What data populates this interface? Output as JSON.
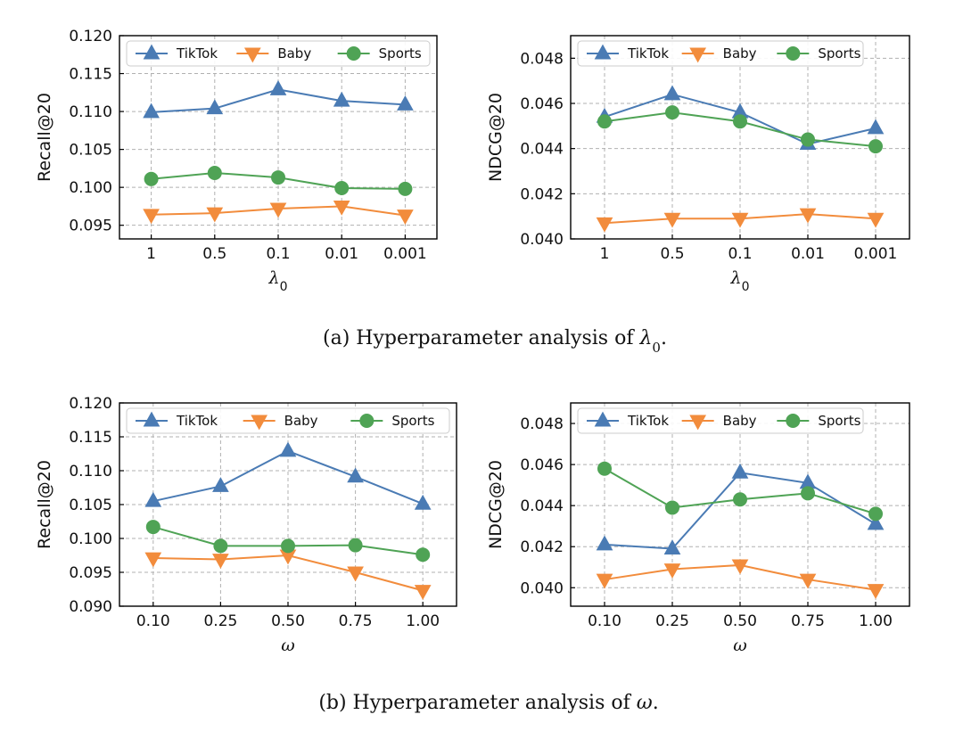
{
  "colors": {
    "TikTok": "#4a7bb4",
    "Baby": "#f28c3c",
    "Sports": "#4fa355",
    "grid": "#b0b0b0",
    "axis": "#000000"
  },
  "markers": {
    "TikTok": "triangle-up",
    "Baby": "triangle-down",
    "Sports": "circle"
  },
  "captions": {
    "a": {
      "prefix": "(a)  Hyperparameter analysis of ",
      "symbol": "λ",
      "subscript": "0",
      "suffix": "."
    },
    "b": {
      "prefix": "(b)  Hyperparameter analysis of ",
      "symbol": "ω",
      "subscript": "",
      "suffix": "."
    }
  },
  "chart_data": [
    {
      "id": "a-recall",
      "type": "line",
      "categories": [
        "1",
        "0.5",
        "0.1",
        "0.01",
        "0.001"
      ],
      "xlabel": "λ",
      "xlabel_sub": "0",
      "ylabel": "Recall@20",
      "ylim": [
        0.0932,
        0.12
      ],
      "yticks": [
        "0.095",
        "0.100",
        "0.105",
        "0.110",
        "0.115",
        "0.120"
      ],
      "grid": true,
      "legend": "top",
      "series": [
        {
          "name": "TikTok",
          "values": [
            0.1099,
            0.1104,
            0.1129,
            0.1114,
            0.1109
          ]
        },
        {
          "name": "Baby",
          "values": [
            0.0964,
            0.0966,
            0.0972,
            0.0975,
            0.0963
          ]
        },
        {
          "name": "Sports",
          "values": [
            0.1011,
            0.1019,
            0.1013,
            0.0999,
            0.0998
          ]
        }
      ]
    },
    {
      "id": "a-ndcg",
      "type": "line",
      "categories": [
        "1",
        "0.5",
        "0.1",
        "0.01",
        "0.001"
      ],
      "xlabel": "λ",
      "xlabel_sub": "0",
      "ylabel": "NDCG@20",
      "ylim": [
        0.04,
        0.049
      ],
      "yticks": [
        "0.040",
        "0.042",
        "0.044",
        "0.046",
        "0.048"
      ],
      "grid": true,
      "legend": "top",
      "series": [
        {
          "name": "TikTok",
          "values": [
            0.0454,
            0.0464,
            0.0456,
            0.0442,
            0.0449
          ]
        },
        {
          "name": "Baby",
          "values": [
            0.0407,
            0.0409,
            0.0409,
            0.0411,
            0.0409
          ]
        },
        {
          "name": "Sports",
          "values": [
            0.0452,
            0.0456,
            0.0452,
            0.0444,
            0.0441
          ]
        }
      ]
    },
    {
      "id": "b-recall",
      "type": "line",
      "categories": [
        "0.10",
        "0.25",
        "0.50",
        "0.75",
        "1.00"
      ],
      "xlabel": "ω",
      "xlabel_sub": "",
      "ylabel": "Recall@20",
      "ylim": [
        0.09,
        0.12
      ],
      "yticks": [
        "0.090",
        "0.095",
        "0.100",
        "0.105",
        "0.110",
        "0.115",
        "0.120"
      ],
      "grid": true,
      "legend": "top",
      "series": [
        {
          "name": "TikTok",
          "values": [
            0.1055,
            0.1077,
            0.1129,
            0.1091,
            0.1051
          ]
        },
        {
          "name": "Baby",
          "values": [
            0.0971,
            0.0969,
            0.0975,
            0.095,
            0.0923
          ]
        },
        {
          "name": "Sports",
          "values": [
            0.1017,
            0.0989,
            0.0989,
            0.099,
            0.0976
          ]
        }
      ]
    },
    {
      "id": "b-ndcg",
      "type": "line",
      "categories": [
        "0.10",
        "0.25",
        "0.50",
        "0.75",
        "1.00"
      ],
      "xlabel": "ω",
      "xlabel_sub": "",
      "ylabel": "NDCG@20",
      "ylim": [
        0.0391,
        0.049
      ],
      "yticks": [
        "0.040",
        "0.042",
        "0.044",
        "0.046",
        "0.048"
      ],
      "grid": true,
      "legend": "top",
      "series": [
        {
          "name": "TikTok",
          "values": [
            0.0421,
            0.0419,
            0.0456,
            0.0451,
            0.0431
          ]
        },
        {
          "name": "Baby",
          "values": [
            0.0404,
            0.0409,
            0.0411,
            0.0404,
            0.0399
          ]
        },
        {
          "name": "Sports",
          "values": [
            0.0458,
            0.0439,
            0.0443,
            0.0446,
            0.0436
          ]
        }
      ]
    }
  ]
}
